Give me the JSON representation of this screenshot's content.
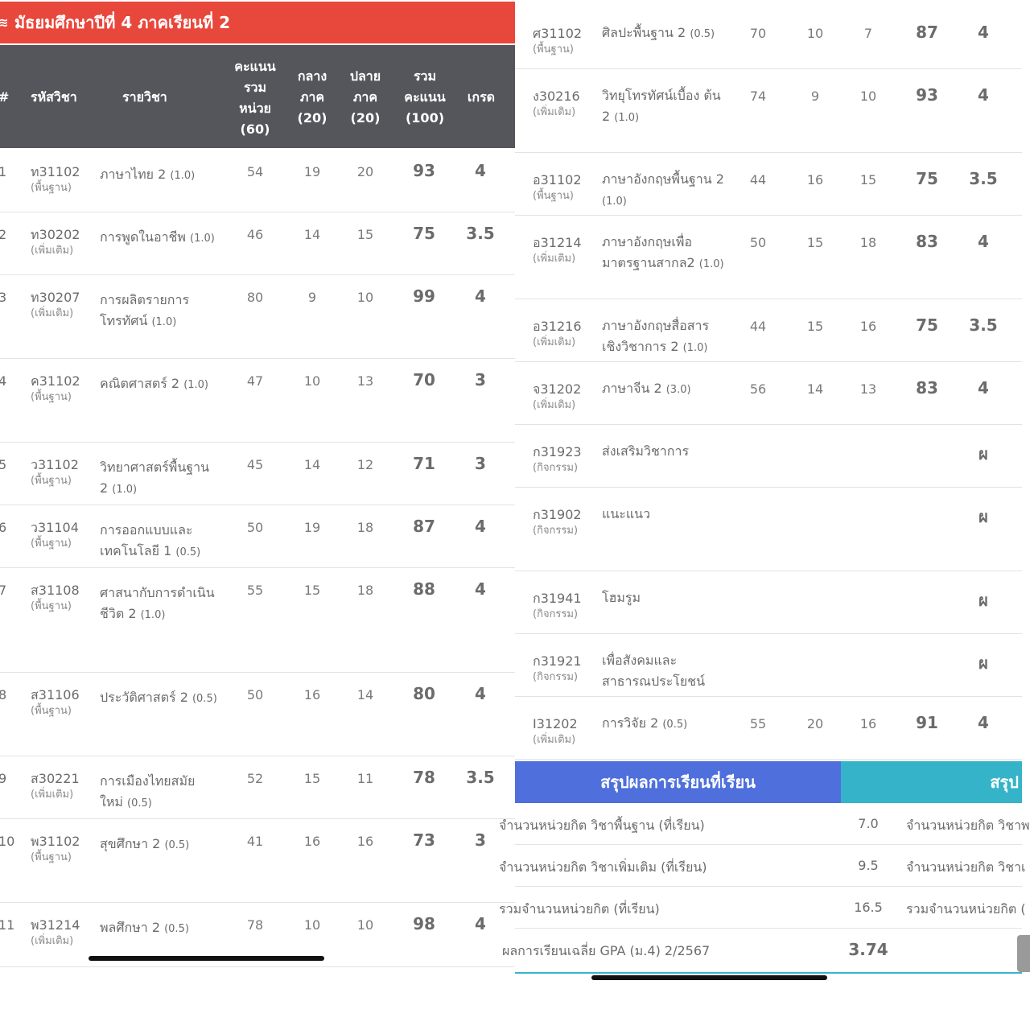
{
  "left": {
    "title": "มัธยมศึกษาปีที่ 4 ภาคเรียนที่ 2",
    "title_icon": "layers-icon",
    "header": {
      "num": "#",
      "code": "รหัสวิชา",
      "name": "รายวิชา",
      "unit_score": [
        "คะแนน",
        "รวม",
        "หน่วย",
        "(60)"
      ],
      "midterm": [
        "กลาง",
        "ภาค",
        "(20)"
      ],
      "final": [
        "ปลาย",
        "ภาค",
        "(20)"
      ],
      "total": [
        "รวม",
        "คะแนน",
        "(100)"
      ],
      "grade": "เกรด"
    },
    "rows": [
      {
        "num": "1",
        "code": "ท31102",
        "type": "(พื้นฐาน)",
        "name": "ภาษาไทย 2",
        "credit": "(1.0)",
        "s60": "54",
        "mid": "19",
        "fin": "20",
        "total": "93",
        "grade": "4"
      },
      {
        "num": "2",
        "code": "ท30202",
        "type": "(เพิ่มเติม)",
        "name": "การพูดในอาชีพ",
        "credit": "(1.0)",
        "s60": "46",
        "mid": "14",
        "fin": "15",
        "total": "75",
        "grade": "3.5"
      },
      {
        "num": "3",
        "code": "ท30207",
        "type": "(เพิ่มเติม)",
        "name": "การผลิตรายการ โทรทัศน์",
        "credit": "(1.0)",
        "s60": "80",
        "mid": "9",
        "fin": "10",
        "total": "99",
        "grade": "4"
      },
      {
        "num": "4",
        "code": "ค31102",
        "type": "(พื้นฐาน)",
        "name": "คณิตศาสตร์ 2",
        "credit": "(1.0)",
        "s60": "47",
        "mid": "10",
        "fin": "13",
        "total": "70",
        "grade": "3"
      },
      {
        "num": "5",
        "code": "ว31102",
        "type": "(พื้นฐาน)",
        "name": "วิทยาศาสตร์พื้นฐาน 2",
        "credit": "(1.0)",
        "s60": "45",
        "mid": "14",
        "fin": "12",
        "total": "71",
        "grade": "3"
      },
      {
        "num": "6",
        "code": "ว31104",
        "type": "(พื้นฐาน)",
        "name": "การออกแบบและ เทคโนโลยี 1",
        "credit": "(0.5)",
        "s60": "50",
        "mid": "19",
        "fin": "18",
        "total": "87",
        "grade": "4"
      },
      {
        "num": "7",
        "code": "ส31108",
        "type": "(พื้นฐาน)",
        "name": "ศาสนากับการดำเนิน ชีวิต 2",
        "credit": "(1.0)",
        "s60": "55",
        "mid": "15",
        "fin": "18",
        "total": "88",
        "grade": "4"
      },
      {
        "num": "8",
        "code": "ส31106",
        "type": "(พื้นฐาน)",
        "name": "ประวัติศาสตร์ 2",
        "credit": "(0.5)",
        "s60": "50",
        "mid": "16",
        "fin": "14",
        "total": "80",
        "grade": "4"
      },
      {
        "num": "9",
        "code": "ส30221",
        "type": "(เพิ่มเติม)",
        "name": "การเมืองไทยสมัย ใหม่",
        "credit": "(0.5)",
        "s60": "52",
        "mid": "15",
        "fin": "11",
        "total": "78",
        "grade": "3.5"
      },
      {
        "num": "10",
        "code": "พ31102",
        "type": "(พื้นฐาน)",
        "name": "สุขศึกษา 2",
        "credit": "(0.5)",
        "s60": "41",
        "mid": "16",
        "fin": "16",
        "total": "73",
        "grade": "3"
      },
      {
        "num": "11",
        "code": "พ31214",
        "type": "(เพิ่มเติม)",
        "name": "พลศึกษา 2",
        "credit": "(0.5)",
        "s60": "78",
        "mid": "10",
        "fin": "10",
        "total": "98",
        "grade": "4"
      }
    ]
  },
  "right": {
    "rows": [
      {
        "code": "ศ31102",
        "type": "(พื้นฐาน)",
        "name": "ศิลปะพื้นฐาน 2",
        "credit": "(0.5)",
        "s60": "70",
        "mid": "10",
        "fin": "7",
        "total": "87",
        "grade": "4"
      },
      {
        "code": "ง30216",
        "type": "(เพิ่มเติม)",
        "name": "วิทยุโทรทัศน์เบื้อง ต้น 2",
        "credit": "(1.0)",
        "s60": "74",
        "mid": "9",
        "fin": "10",
        "total": "93",
        "grade": "4"
      },
      {
        "code": "อ31102",
        "type": "(พื้นฐาน)",
        "name": "ภาษาอังกฤษพื้นฐาน 2",
        "credit": "(1.0)",
        "s60": "44",
        "mid": "16",
        "fin": "15",
        "total": "75",
        "grade": "3.5"
      },
      {
        "code": "อ31214",
        "type": "(เพิ่มเติม)",
        "name": "ภาษาอังกฤษเพื่อ มาตรฐานสากล2",
        "credit": "(1.0)",
        "s60": "50",
        "mid": "15",
        "fin": "18",
        "total": "83",
        "grade": "4"
      },
      {
        "code": "อ31216",
        "type": "(เพิ่มเติม)",
        "name": "ภาษาอังกฤษสื่อสาร เชิงวิชาการ 2",
        "credit": "(1.0)",
        "s60": "44",
        "mid": "15",
        "fin": "16",
        "total": "75",
        "grade": "3.5"
      },
      {
        "code": "จ31202",
        "type": "(เพิ่มเติม)",
        "name": "ภาษาจีน 2",
        "credit": "(3.0)",
        "s60": "56",
        "mid": "14",
        "fin": "13",
        "total": "83",
        "grade": "4"
      },
      {
        "code": "ก31923",
        "type": "(กิจกรรม)",
        "name": "ส่งเสริมวิชาการ",
        "credit": "",
        "s60": "",
        "mid": "",
        "fin": "",
        "total": "",
        "grade": "ผ"
      },
      {
        "code": "ก31902",
        "type": "(กิจกรรม)",
        "name": "แนะแนว",
        "credit": "",
        "s60": "",
        "mid": "",
        "fin": "",
        "total": "",
        "grade": "ผ"
      },
      {
        "code": "ก31941",
        "type": "(กิจกรรม)",
        "name": "โฮมรูม",
        "credit": "",
        "s60": "",
        "mid": "",
        "fin": "",
        "total": "",
        "grade": "ผ"
      },
      {
        "code": "ก31921",
        "type": "(กิจกรรม)",
        "name": "เพื่อสังคมและ สาธารณประโยชน์",
        "credit": "",
        "s60": "",
        "mid": "",
        "fin": "",
        "total": "",
        "grade": "ผ"
      },
      {
        "code": "I31202",
        "type": "(เพิ่มเติม)",
        "name": "การวิจัย 2",
        "credit": "(0.5)",
        "s60": "55",
        "mid": "20",
        "fin": "16",
        "total": "91",
        "grade": "4"
      }
    ],
    "summary_title": "สรุปผลการเรียนที่เรียน",
    "summary_title2": "สรุป",
    "summary": [
      {
        "label": "จำนวนหน่วยกิต วิชาพื้นฐาน (ที่เรียน)",
        "value": "7.0",
        "label2": "จำนวนหน่วยกิต วิชาพ"
      },
      {
        "label": "จำนวนหน่วยกิต วิชาเพิ่มเติม (ที่เรียน)",
        "value": "9.5",
        "label2": "จำนวนหน่วยกิต วิชาเ"
      },
      {
        "label": "รวมจำนวนหน่วยกิต (ที่เรียน)",
        "value": "16.5",
        "label2": "รวมจำนวนหน่วยกิต ("
      },
      {
        "label": "ผลการเรียนเฉลี่ย GPA (ม.4) 2/2567",
        "value": "3.74",
        "label2": ""
      }
    ]
  },
  "colors": {
    "red_header": "#e8473c",
    "dark_header": "#54565c",
    "blue": "#4e6fdc",
    "teal": "#35b4c9"
  }
}
